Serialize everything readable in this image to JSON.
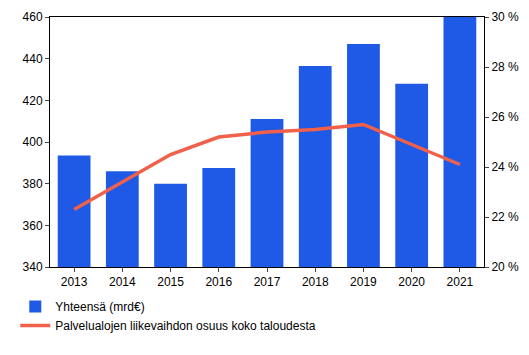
{
  "chart_data": {
    "type": "bar",
    "categories": [
      "2013",
      "2014",
      "2015",
      "2016",
      "2017",
      "2018",
      "2019",
      "2020",
      "2021"
    ],
    "series": [
      {
        "name": "Yhteensä (mrd€)",
        "type": "bar",
        "color": "#1f5ae6",
        "values": [
          393.5,
          386,
          380,
          387.5,
          411,
          436.5,
          447,
          428,
          460
        ]
      },
      {
        "name": "Palvelualojen liikevaihdon osuus koko taloudesta",
        "type": "line",
        "axis": "y2",
        "color": "#f0604a",
        "values": [
          22.3,
          23.4,
          24.5,
          25.2,
          25.4,
          25.5,
          25.7,
          24.9,
          24.1
        ]
      }
    ],
    "ylim": [
      340,
      460
    ],
    "yticks": [
      340,
      360,
      380,
      400,
      420,
      440,
      460
    ],
    "y2lim": [
      20,
      30
    ],
    "y2ticks": [
      {
        "value": 20,
        "label": "20 %"
      },
      {
        "value": 22,
        "label": "22 %"
      },
      {
        "value": 24,
        "label": "24 %"
      },
      {
        "value": 26,
        "label": "26 %"
      },
      {
        "value": 28,
        "label": "28 %"
      },
      {
        "value": 30,
        "label": "30 %"
      }
    ],
    "legend": "bottom",
    "grid": false
  }
}
